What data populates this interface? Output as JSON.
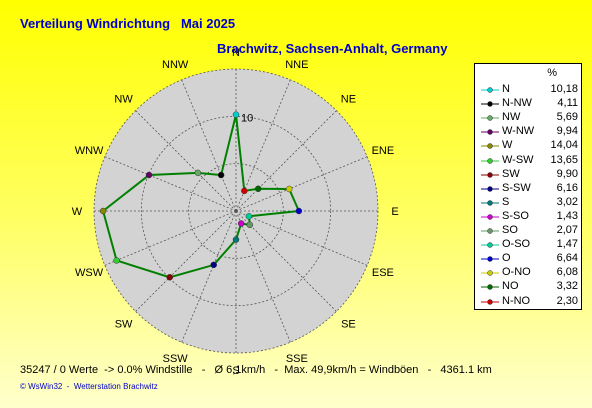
{
  "header": {
    "title": "Verteilung Windrichtung   Mai 2025",
    "subtitle": "Brachwitz, Sachsen-Anhalt, Germany"
  },
  "chart_data": {
    "type": "radar",
    "directions": [
      "N",
      "NNE",
      "NE",
      "ENE",
      "E",
      "ESE",
      "SE",
      "SSE",
      "S",
      "SSW",
      "SW",
      "WSW",
      "W",
      "WNW",
      "NW",
      "NNW"
    ],
    "ring_label": "10",
    "rmax": 15,
    "rings": [
      5,
      10,
      15
    ],
    "unit": "%",
    "series_color": "#008000",
    "points": [
      {
        "dir": "N",
        "value": 10.18,
        "color": "#00cccc"
      },
      {
        "dir": "NNE",
        "value": 2.3,
        "color": "#cc0000"
      },
      {
        "dir": "NE",
        "value": 3.32,
        "color": "#006600"
      },
      {
        "dir": "ENE",
        "value": 6.08,
        "color": "#cccc00"
      },
      {
        "dir": "E",
        "value": 6.64,
        "color": "#0000cc"
      },
      {
        "dir": "ESE",
        "value": 1.47,
        "color": "#00cc99"
      },
      {
        "dir": "SE",
        "value": 2.07,
        "color": "#669966"
      },
      {
        "dir": "SSE",
        "value": 1.43,
        "color": "#cc00cc"
      },
      {
        "dir": "S",
        "value": 3.02,
        "color": "#007777"
      },
      {
        "dir": "SSW",
        "value": 6.16,
        "color": "#000088"
      },
      {
        "dir": "SW",
        "value": 9.9,
        "color": "#880000"
      },
      {
        "dir": "WSW",
        "value": 13.65,
        "color": "#33cc33"
      },
      {
        "dir": "W",
        "value": 14.04,
        "color": "#888800"
      },
      {
        "dir": "WNW",
        "value": 9.94,
        "color": "#660066"
      },
      {
        "dir": "NW",
        "value": 5.69,
        "color": "#66aa66"
      },
      {
        "dir": "NNW",
        "value": 4.11,
        "color": "#000000"
      }
    ],
    "legend": [
      {
        "name": "N",
        "value": "10,18",
        "color": "#00cccc"
      },
      {
        "name": "N-NW",
        "value": "4,11",
        "color": "#000000"
      },
      {
        "name": "NW",
        "value": "5,69",
        "color": "#66aa66"
      },
      {
        "name": "W-NW",
        "value": "9,94",
        "color": "#660066"
      },
      {
        "name": "W",
        "value": "14,04",
        "color": "#888800"
      },
      {
        "name": "W-SW",
        "value": "13,65",
        "color": "#33cc33"
      },
      {
        "name": "SW",
        "value": "9,90",
        "color": "#880000"
      },
      {
        "name": "S-SW",
        "value": "6,16",
        "color": "#000088"
      },
      {
        "name": "S",
        "value": "3,02",
        "color": "#007777"
      },
      {
        "name": "S-SO",
        "value": "1,43",
        "color": "#cc00cc"
      },
      {
        "name": "SO",
        "value": "2,07",
        "color": "#669966"
      },
      {
        "name": "O-SO",
        "value": "1,47",
        "color": "#00cc99"
      },
      {
        "name": "O",
        "value": "6,64",
        "color": "#0000cc"
      },
      {
        "name": "O-NO",
        "value": "6,08",
        "color": "#cccc00"
      },
      {
        "name": "NO",
        "value": "3,32",
        "color": "#006600"
      },
      {
        "name": "N-NO",
        "value": "2,30",
        "color": "#cc0000"
      }
    ]
  },
  "footer": {
    "stats": "35247 / 0 Werte  -> 0.0% Windstille   -   Ø 6,1km/h   -  Max. 49,9km/h = Windböen   -   4361.1 km",
    "credit": "© WsWin32  -  Wetterstation Brachwitz"
  }
}
